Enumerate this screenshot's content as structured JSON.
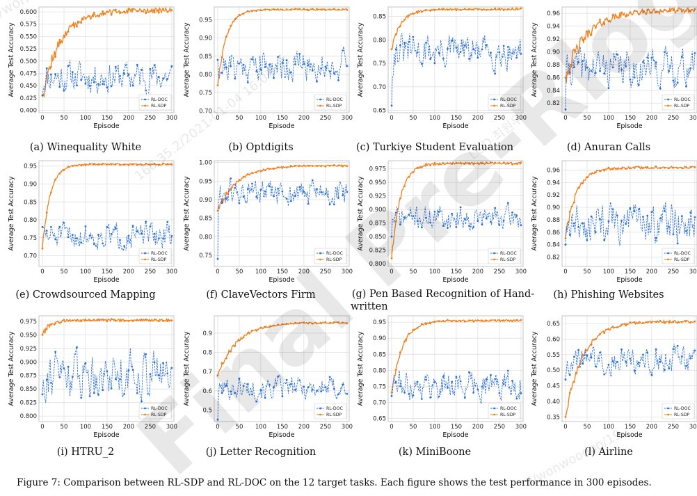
{
  "figure_caption": "Figure 7: Comparison between RL-SDP and RL-DOC on the 12 target tasks. Each figure shows the test performance in 300 episodes.",
  "watermark_lines": [
    "F/wonwoodoo/19",
    "168.35.2/2021-01-04 16:07:45",
    "LGD 원 최원우",
    "Pre-ring",
    "Final Pre-Rlogs"
  ],
  "colors": {
    "rl_doc": "#2a6fdb",
    "rl_sdp": "#f07f1a",
    "grid": "#dcdcdc",
    "frame": "#b8b8b8"
  },
  "chart_data": [
    {
      "type": "line",
      "caption": "(a) Winequality White",
      "xlabel": "Episode",
      "ylabel": "Average Test Accuracy",
      "xlim": [
        -8,
        305
      ],
      "xticks": [
        0,
        50,
        100,
        150,
        200,
        250,
        300
      ],
      "ylim": [
        0.395,
        0.61
      ],
      "yticks": [
        0.4,
        0.425,
        0.45,
        0.475,
        0.5,
        0.525,
        0.55,
        0.575,
        0.6
      ],
      "ydec": 3,
      "legend": "lower-right",
      "series": [
        {
          "name": "RL-DOC",
          "style": "dashed",
          "marker": "circle",
          "mean": 0.468,
          "amp": 0.022,
          "start": 0.43,
          "seed": 11
        },
        {
          "name": "RL-SDP",
          "style": "solid",
          "marker": "star",
          "start": 0.43,
          "plateau": 0.603,
          "tau": 42,
          "noise": 0.005,
          "seed": 12
        }
      ]
    },
    {
      "type": "line",
      "caption": "(b) Optdigits",
      "xlabel": "Episode",
      "ylabel": "Average Test Accuracy",
      "xlim": [
        -8,
        305
      ],
      "xticks": [
        0,
        50,
        100,
        150,
        200,
        250,
        300
      ],
      "ylim": [
        0.695,
        0.985
      ],
      "yticks": [
        0.7,
        0.75,
        0.8,
        0.85,
        0.9,
        0.95
      ],
      "ydec": 2,
      "legend": "lower-right",
      "series": [
        {
          "name": "RL-DOC",
          "style": "dashed",
          "marker": "circle",
          "mean": 0.825,
          "amp": 0.03,
          "start": 0.84,
          "seed": 21
        },
        {
          "name": "RL-SDP",
          "style": "solid",
          "marker": "star",
          "start": 0.77,
          "plateau": 0.978,
          "tau": 20,
          "noise": 0.002,
          "seed": 22
        }
      ]
    },
    {
      "type": "line",
      "caption": "(c) Turkiye Student Evaluation",
      "xlabel": "Episode",
      "ylabel": "Average Test Accuracy",
      "xlim": [
        -8,
        305
      ],
      "xticks": [
        0,
        50,
        100,
        150,
        200,
        250,
        300
      ],
      "ylim": [
        0.645,
        0.87
      ],
      "yticks": [
        0.65,
        0.7,
        0.75,
        0.8,
        0.85
      ],
      "ydec": 2,
      "legend": "lower-right",
      "series": [
        {
          "name": "RL-DOC",
          "style": "dashed",
          "marker": "circle",
          "mean": 0.775,
          "amp": 0.025,
          "start": 0.66,
          "seed": 31
        },
        {
          "name": "RL-SDP",
          "style": "solid",
          "marker": "star",
          "start": 0.78,
          "plateau": 0.865,
          "tau": 22,
          "noise": 0.002,
          "seed": 32
        }
      ]
    },
    {
      "type": "line",
      "caption": "(d) Anuran Calls",
      "xlabel": "Episode",
      "ylabel": "Average Test Accuracy",
      "xlim": [
        -8,
        305
      ],
      "xticks": [
        0,
        50,
        100,
        150,
        200,
        250,
        300
      ],
      "ylim": [
        0.805,
        0.97
      ],
      "yticks": [
        0.82,
        0.84,
        0.86,
        0.88,
        0.9,
        0.92,
        0.94,
        0.96
      ],
      "ydec": 2,
      "legend": "lower-right",
      "series": [
        {
          "name": "RL-DOC",
          "style": "dashed",
          "marker": "circle",
          "mean": 0.875,
          "amp": 0.02,
          "start": 0.81,
          "seed": 41
        },
        {
          "name": "RL-SDP",
          "style": "solid",
          "marker": "star",
          "start": 0.86,
          "plateau": 0.965,
          "tau": 50,
          "noise": 0.004,
          "seed": 42
        }
      ]
    },
    {
      "type": "line",
      "caption": "(e) Crowdsourced Mapping",
      "xlabel": "Episode",
      "ylabel": "Average Test Accuracy",
      "xlim": [
        -8,
        305
      ],
      "xticks": [
        0,
        50,
        100,
        150,
        200,
        250,
        300
      ],
      "ylim": [
        0.67,
        0.965
      ],
      "yticks": [
        0.7,
        0.75,
        0.8,
        0.85,
        0.9,
        0.95
      ],
      "ydec": 2,
      "legend": "lower-right",
      "series": [
        {
          "name": "RL-DOC",
          "style": "dashed",
          "marker": "circle",
          "mean": 0.755,
          "amp": 0.025,
          "start": 0.78,
          "seed": 51
        },
        {
          "name": "RL-SDP",
          "style": "solid",
          "marker": "star",
          "start": 0.72,
          "plateau": 0.955,
          "tau": 18,
          "noise": 0.002,
          "seed": 52
        }
      ]
    },
    {
      "type": "line",
      "caption": "(f) ClaveVectors Firm",
      "xlabel": "Episode",
      "ylabel": "Average Test Accuracy",
      "xlim": [
        -8,
        305
      ],
      "xticks": [
        0,
        50,
        100,
        150,
        200,
        250,
        300
      ],
      "ylim": [
        0.72,
        1.005
      ],
      "yticks": [
        0.75,
        0.8,
        0.85,
        0.9,
        0.95,
        1.0
      ],
      "ydec": 2,
      "legend": "lower-right",
      "series": [
        {
          "name": "RL-DOC",
          "style": "dashed",
          "marker": "circle",
          "mean": 0.915,
          "amp": 0.025,
          "start": 0.74,
          "seed": 61
        },
        {
          "name": "RL-SDP",
          "style": "solid",
          "marker": "star",
          "start": 0.87,
          "plateau": 0.992,
          "tau": 45,
          "noise": 0.002,
          "seed": 62
        }
      ]
    },
    {
      "type": "line",
      "caption": "(g) Pen Based Recognition of Handwritten",
      "caption_wrap": [
        "(g) Pen Based Recognition of Hand-",
        "written"
      ],
      "xlabel": "Episode",
      "ylabel": "Average Test Accuracy",
      "xlim": [
        -8,
        305
      ],
      "xticks": [
        0,
        50,
        100,
        150,
        200,
        250,
        300
      ],
      "ylim": [
        0.795,
        0.99
      ],
      "yticks": [
        0.8,
        0.825,
        0.85,
        0.875,
        0.9,
        0.925,
        0.95,
        0.975
      ],
      "ydec": 3,
      "legend": "lower-right",
      "series": [
        {
          "name": "RL-DOC",
          "style": "dashed",
          "marker": "circle",
          "mean": 0.885,
          "amp": 0.015,
          "start": 0.85,
          "seed": 71
        },
        {
          "name": "RL-SDP",
          "style": "solid",
          "marker": "star",
          "start": 0.81,
          "plateau": 0.985,
          "tau": 20,
          "noise": 0.002,
          "seed": 72
        }
      ]
    },
    {
      "type": "line",
      "caption": "(h) Phishing Websites",
      "xlabel": "Episode",
      "ylabel": "Average Test Accuracy",
      "xlim": [
        -8,
        305
      ],
      "xticks": [
        0,
        50,
        100,
        150,
        200,
        250,
        300
      ],
      "ylim": [
        0.805,
        0.975
      ],
      "yticks": [
        0.82,
        0.84,
        0.86,
        0.88,
        0.9,
        0.92,
        0.94,
        0.96
      ],
      "ydec": 2,
      "legend": "lower-right",
      "series": [
        {
          "name": "RL-DOC",
          "style": "dashed",
          "marker": "circle",
          "mean": 0.875,
          "amp": 0.022,
          "start": 0.84,
          "seed": 81
        },
        {
          "name": "RL-SDP",
          "style": "solid",
          "marker": "star",
          "start": 0.85,
          "plateau": 0.964,
          "tau": 25,
          "noise": 0.002,
          "seed": 82
        }
      ]
    },
    {
      "type": "line",
      "caption": "(i) HTRU_2",
      "xlabel": "Episode",
      "ylabel": "Average Test Accuracy",
      "xlim": [
        -8,
        305
      ],
      "xticks": [
        0,
        50,
        100,
        150,
        200,
        250,
        300
      ],
      "ylim": [
        0.79,
        0.985
      ],
      "yticks": [
        0.8,
        0.825,
        0.85,
        0.875,
        0.9,
        0.925,
        0.95,
        0.975
      ],
      "ydec": 3,
      "legend": "lower-right",
      "series": [
        {
          "name": "RL-DOC",
          "style": "dashed",
          "marker": "circle",
          "mean": 0.88,
          "amp": 0.03,
          "start": 0.84,
          "seed": 91
        },
        {
          "name": "RL-SDP",
          "style": "solid",
          "marker": "star",
          "start": 0.95,
          "plateau": 0.977,
          "tau": 18,
          "noise": 0.002,
          "seed": 92
        }
      ]
    },
    {
      "type": "line",
      "caption": "(j) Letter Recognition",
      "xlabel": "Episode",
      "ylabel": "Average Test Accuracy",
      "xlim": [
        -8,
        305
      ],
      "xticks": [
        0,
        50,
        100,
        150,
        200,
        250,
        300
      ],
      "ylim": [
        0.44,
        0.99
      ],
      "yticks": [
        0.5,
        0.6,
        0.7,
        0.8,
        0.9
      ],
      "ydec": 1,
      "legend": "lower-right",
      "series": [
        {
          "name": "RL-DOC",
          "style": "dashed",
          "marker": "circle",
          "mean": 0.615,
          "amp": 0.04,
          "start": 0.45,
          "seed": 101
        },
        {
          "name": "RL-SDP",
          "style": "solid",
          "marker": "star",
          "start": 0.68,
          "plateau": 0.955,
          "tau": 45,
          "noise": 0.004,
          "seed": 102
        }
      ]
    },
    {
      "type": "line",
      "caption": "(k) MiniBoone",
      "xlabel": "Episode",
      "ylabel": "Average Test Accuracy",
      "xlim": [
        -8,
        305
      ],
      "xticks": [
        0,
        50,
        100,
        150,
        200,
        250,
        300
      ],
      "ylim": [
        0.64,
        0.97
      ],
      "yticks": [
        0.65,
        0.7,
        0.75,
        0.8,
        0.85,
        0.9,
        0.95
      ],
      "ydec": 2,
      "legend": "lower-right",
      "series": [
        {
          "name": "RL-DOC",
          "style": "dashed",
          "marker": "circle",
          "mean": 0.755,
          "amp": 0.03,
          "start": 0.72,
          "seed": 111
        },
        {
          "name": "RL-SDP",
          "style": "solid",
          "marker": "star",
          "start": 0.73,
          "plateau": 0.955,
          "tau": 25,
          "noise": 0.003,
          "seed": 112
        }
      ]
    },
    {
      "type": "line",
      "caption": "(l) Airline",
      "xlabel": "Episode",
      "ylabel": "Average Test Accuracy",
      "xlim": [
        -8,
        305
      ],
      "xticks": [
        0,
        50,
        100,
        150,
        200,
        250,
        300
      ],
      "ylim": [
        0.335,
        0.675
      ],
      "yticks": [
        0.35,
        0.4,
        0.45,
        0.5,
        0.55,
        0.6,
        0.65
      ],
      "ydec": 2,
      "legend": "lower-right",
      "series": [
        {
          "name": "RL-DOC",
          "style": "dashed",
          "marker": "circle",
          "mean": 0.535,
          "amp": 0.03,
          "start": 0.47,
          "seed": 121
        },
        {
          "name": "RL-SDP",
          "style": "solid",
          "marker": "star",
          "start": 0.35,
          "plateau": 0.657,
          "tau": 40,
          "noise": 0.004,
          "seed": 122
        }
      ]
    }
  ]
}
